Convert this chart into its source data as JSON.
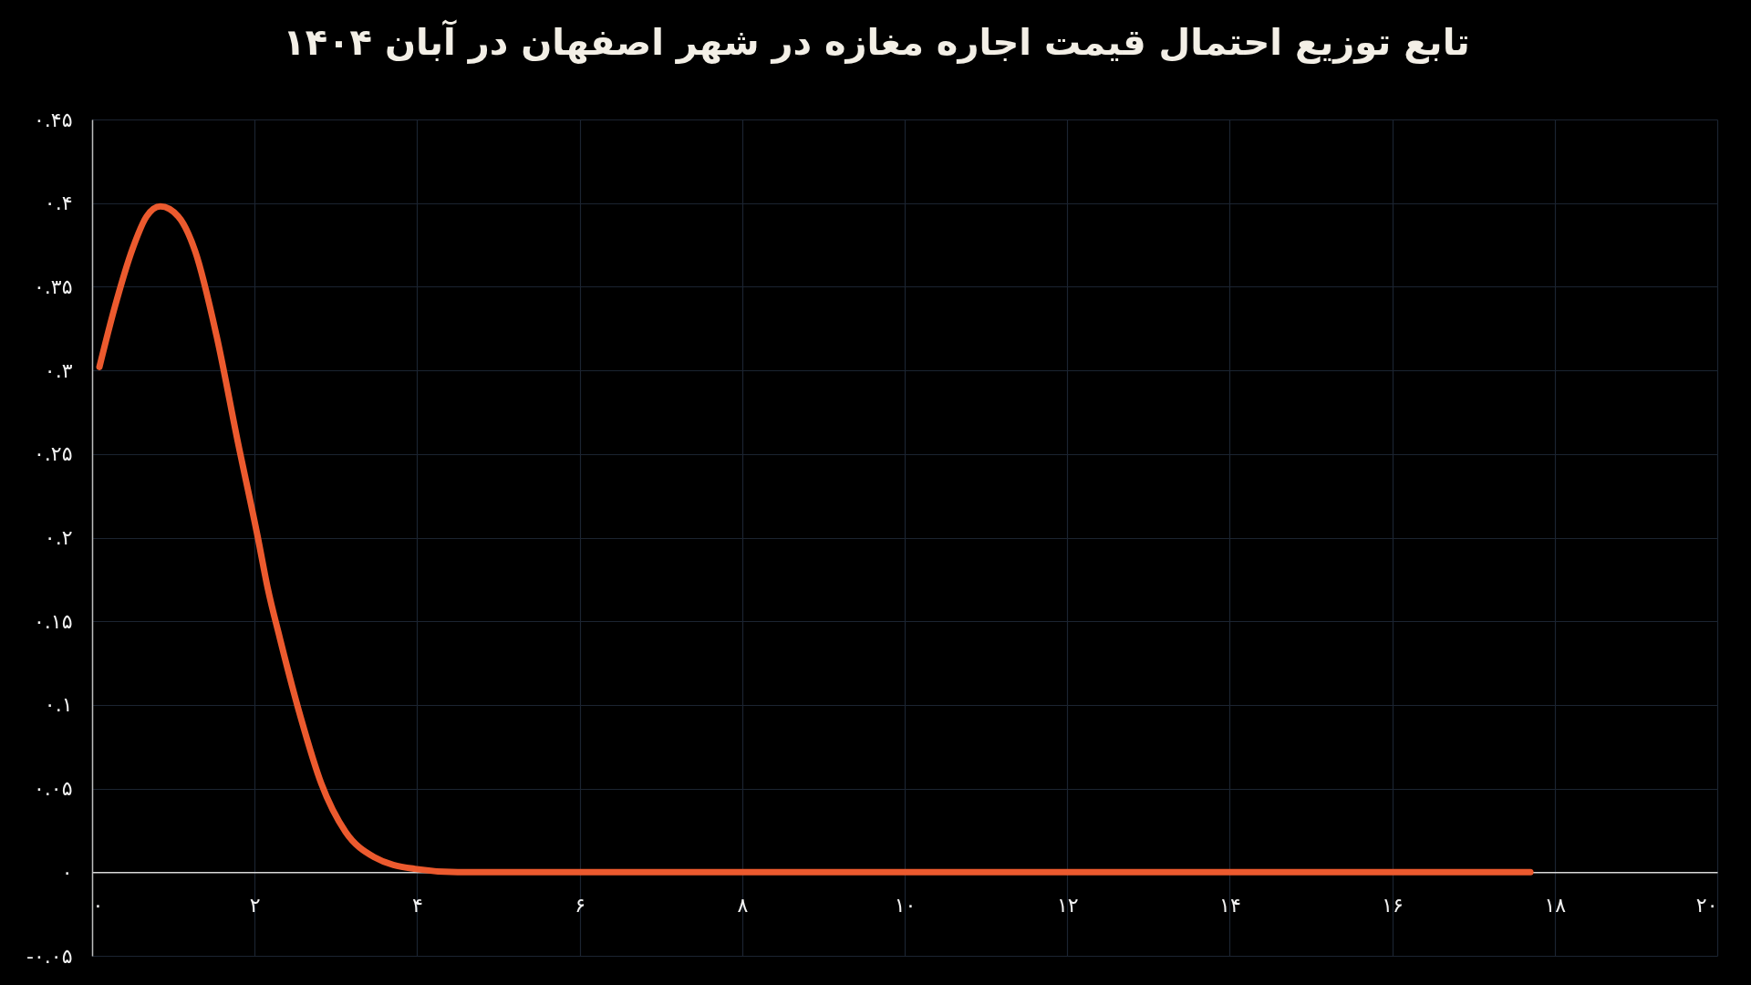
{
  "chart_data": {
    "type": "line",
    "title": "تابع توزیع احتمال قیمت اجاره مغازه در شهر اصفهان در آبان ۱۴۰۴",
    "x": [
      0.09,
      0.28,
      0.5,
      0.67,
      0.84,
      1.06,
      1.27,
      1.53,
      1.79,
      2.04,
      2.16,
      2.31,
      2.57,
      2.82,
      3.12,
      3.47,
      3.97,
      4.5,
      5,
      6,
      8,
      10,
      12,
      14,
      16,
      17.7
    ],
    "series": [
      {
        "color": "#ec5a2e",
        "values": [
          0.302,
          0.338,
          0.373,
          0.392,
          0.398,
          0.392,
          0.371,
          0.321,
          0.258,
          0.2,
          0.17,
          0.14,
          0.092,
          0.053,
          0.024,
          0.009,
          0.002,
          0,
          0,
          0,
          0,
          0,
          0,
          0,
          0,
          0
        ]
      }
    ],
    "xlim": [
      0,
      20
    ],
    "ylim": [
      -0.05,
      0.45
    ],
    "xticks": [
      {
        "value": 0,
        "label": "۰"
      },
      {
        "value": 2,
        "label": "۲"
      },
      {
        "value": 4,
        "label": "۴"
      },
      {
        "value": 6,
        "label": "۶"
      },
      {
        "value": 8,
        "label": "۸"
      },
      {
        "value": 10,
        "label": "۱۰"
      },
      {
        "value": 12,
        "label": "۱۲"
      },
      {
        "value": 14,
        "label": "۱۴"
      },
      {
        "value": 16,
        "label": "۱۶"
      },
      {
        "value": 18,
        "label": "۱۸"
      },
      {
        "value": 20,
        "label": "۲۰"
      }
    ],
    "yticks": [
      {
        "value": -0.05,
        "label": "-۰.۰۵"
      },
      {
        "value": 0,
        "label": "۰"
      },
      {
        "value": 0.05,
        "label": "۰.۰۵"
      },
      {
        "value": 0.1,
        "label": "۰.۱"
      },
      {
        "value": 0.15,
        "label": "۰.۱۵"
      },
      {
        "value": 0.2,
        "label": "۰.۲"
      },
      {
        "value": 0.25,
        "label": "۰.۲۵"
      },
      {
        "value": 0.3,
        "label": "۰.۳"
      },
      {
        "value": 0.35,
        "label": "۰.۳۵"
      },
      {
        "value": 0.4,
        "label": "۰.۴"
      },
      {
        "value": 0.45,
        "label": "۰.۴۵"
      }
    ],
    "grid": true,
    "line_style": "solid"
  }
}
